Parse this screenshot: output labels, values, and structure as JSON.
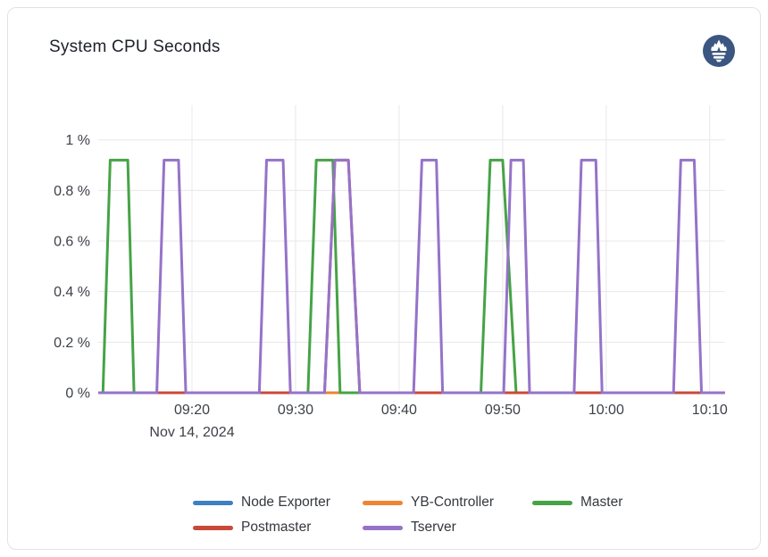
{
  "header": {
    "title": "System CPU Seconds",
    "logo": "prometheus-logo"
  },
  "chart_data": {
    "type": "line",
    "title": "System CPU Seconds",
    "x_axis": {
      "date_label": "Nov 14, 2024",
      "unit": "time (HH:MM)",
      "range_minutes_after_0900": [
        10.95,
        71.45
      ],
      "ticks": [
        {
          "t": 20,
          "label": "09:20"
        },
        {
          "t": 30,
          "label": "09:30"
        },
        {
          "t": 40,
          "label": "09:40"
        },
        {
          "t": 50,
          "label": "09:50"
        },
        {
          "t": 60,
          "label": "10:00"
        },
        {
          "t": 70,
          "label": "10:10"
        }
      ]
    },
    "y_axis": {
      "unit": "percent",
      "range": [
        0,
        1.13
      ],
      "ticks": [
        {
          "v": 0,
          "label": "0 %"
        },
        {
          "v": 0.2,
          "label": "0.2 %"
        },
        {
          "v": 0.4,
          "label": "0.4 %"
        },
        {
          "v": 0.6,
          "label": "0.6 %"
        },
        {
          "v": 0.8,
          "label": "0.8 %"
        },
        {
          "v": 1,
          "label": "1 %"
        }
      ]
    },
    "peak_percent": 0.92,
    "grid": true,
    "legend_position": "bottom",
    "series": [
      {
        "name": "Node Exporter",
        "color": "#3e80c2",
        "spikes": []
      },
      {
        "name": "YB-Controller",
        "color": "#ee8434",
        "spikes": []
      },
      {
        "name": "Master",
        "color": "#46a346",
        "spikes": [
          [
            11.4,
            12.1,
            13.8,
            14.4
          ],
          [
            31.2,
            32.0,
            33.6,
            34.3
          ],
          [
            47.9,
            48.8,
            50.0,
            51.3
          ]
        ]
      },
      {
        "name": "Postmaster",
        "color": "#c8493a",
        "spikes": [
          [
            32.8,
            33.8,
            35.1,
            36.2
          ]
        ]
      },
      {
        "name": "Tserver",
        "color": "#9573c9",
        "spikes": [
          [
            16.6,
            17.3,
            18.7,
            19.4
          ],
          [
            26.5,
            27.2,
            28.8,
            29.5
          ],
          [
            32.8,
            33.8,
            35.1,
            36.2
          ],
          [
            41.4,
            42.2,
            43.6,
            44.2
          ],
          [
            50.1,
            50.8,
            52.0,
            52.6
          ],
          [
            56.9,
            57.6,
            59.0,
            59.6
          ],
          [
            66.5,
            67.2,
            68.5,
            69.2
          ]
        ]
      }
    ],
    "grid_color": "#e8e8ea",
    "tick_text_color": "#3d4148"
  },
  "logo_color": "#3b5680"
}
